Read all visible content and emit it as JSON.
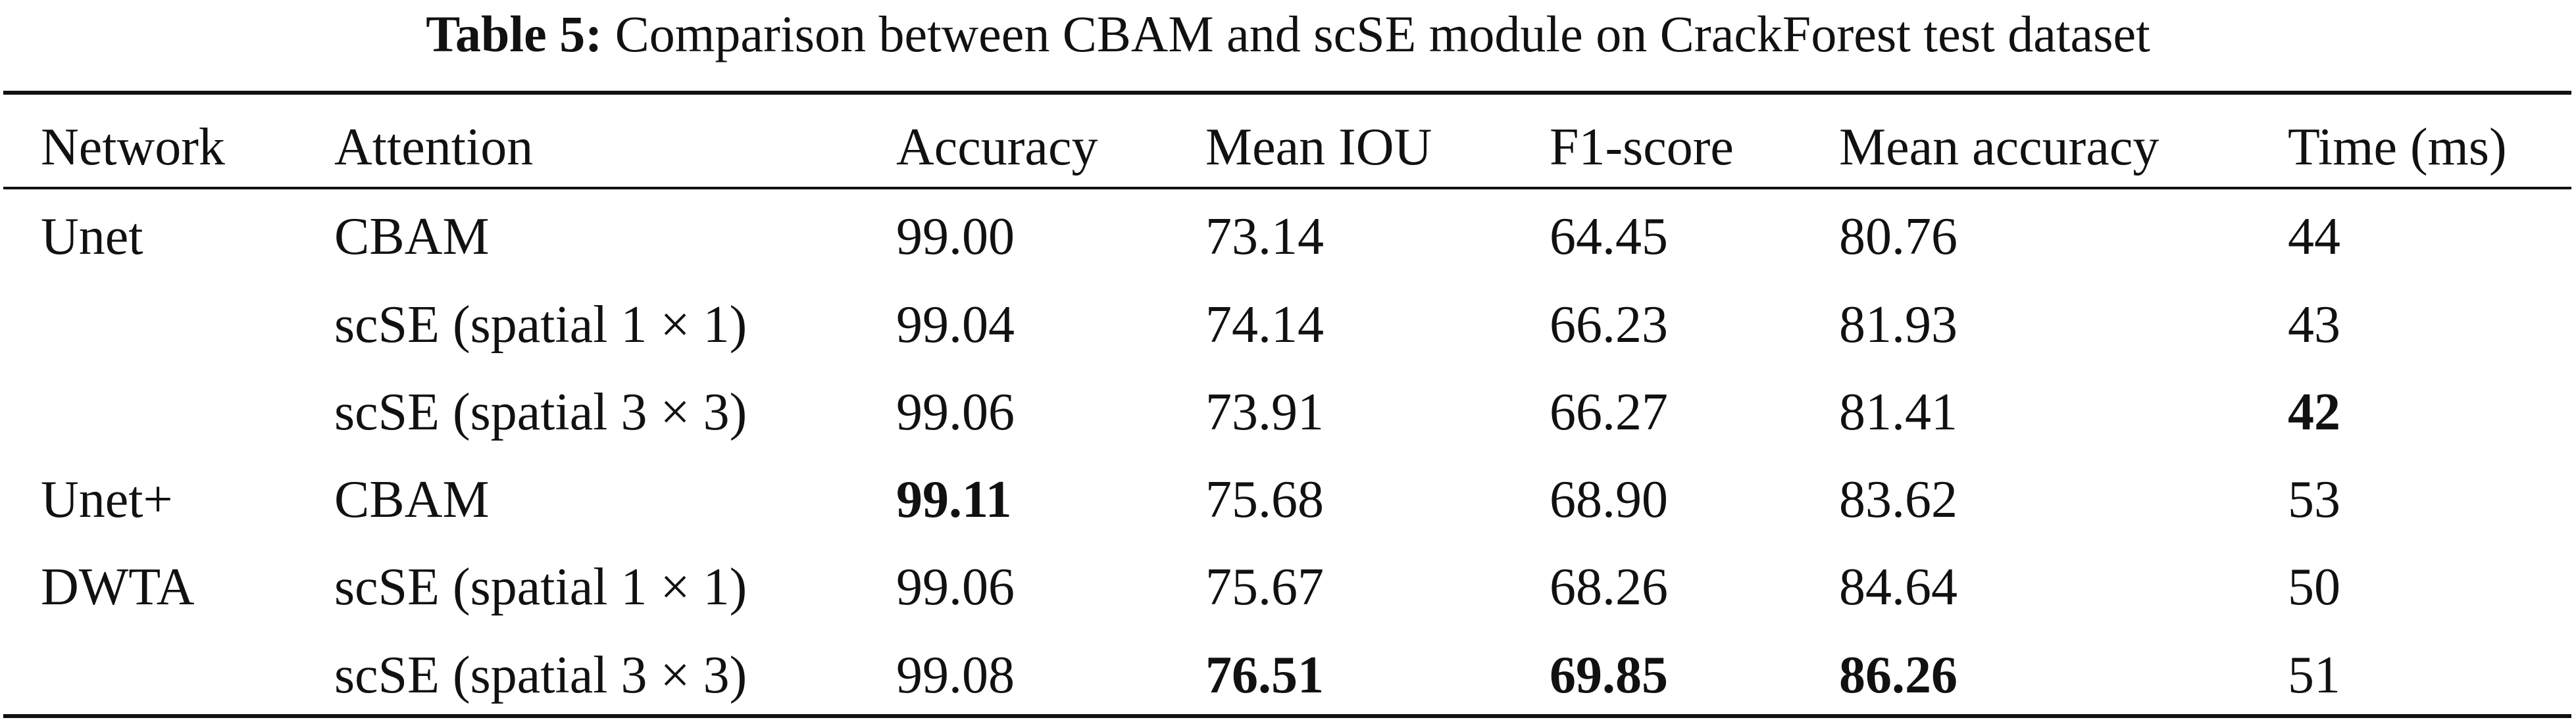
{
  "caption": {
    "label": "Table 5:",
    "text": "Comparison between CBAM and scSE module on CrackForest test dataset"
  },
  "table": {
    "headers": [
      "Network",
      "Attention",
      "Accuracy",
      "Mean IOU",
      "F1-score",
      "Mean accuracy",
      "Time (ms)"
    ],
    "groups": [
      {
        "network_line1": "Unet",
        "network_line2": ""
      },
      {
        "network_line1": "Unet+",
        "network_line2": "DWTA"
      }
    ],
    "rows": [
      {
        "attention": "CBAM",
        "accuracy": "99.00",
        "mean_iou": "73.14",
        "f1": "64.45",
        "mean_accuracy": "80.76",
        "time": "44"
      },
      {
        "attention": "scSE (spatial 1 × 1)",
        "accuracy": "99.04",
        "mean_iou": "74.14",
        "f1": "66.23",
        "mean_accuracy": "81.93",
        "time": "43"
      },
      {
        "attention": "scSE (spatial 3 × 3)",
        "accuracy": "99.06",
        "mean_iou": "73.91",
        "f1": "66.27",
        "mean_accuracy": "81.41",
        "time": "42"
      },
      {
        "attention": "CBAM",
        "accuracy": "99.11",
        "mean_iou": "75.68",
        "f1": "68.90",
        "mean_accuracy": "83.62",
        "time": "53"
      },
      {
        "attention": "scSE (spatial 1 × 1)",
        "accuracy": "99.06",
        "mean_iou": "75.67",
        "f1": "68.26",
        "mean_accuracy": "84.64",
        "time": "50"
      },
      {
        "attention": "scSE (spatial 3 × 3)",
        "accuracy": "99.08",
        "mean_iou": "76.51",
        "f1": "69.85",
        "mean_accuracy": "86.26",
        "time": "51"
      }
    ]
  }
}
